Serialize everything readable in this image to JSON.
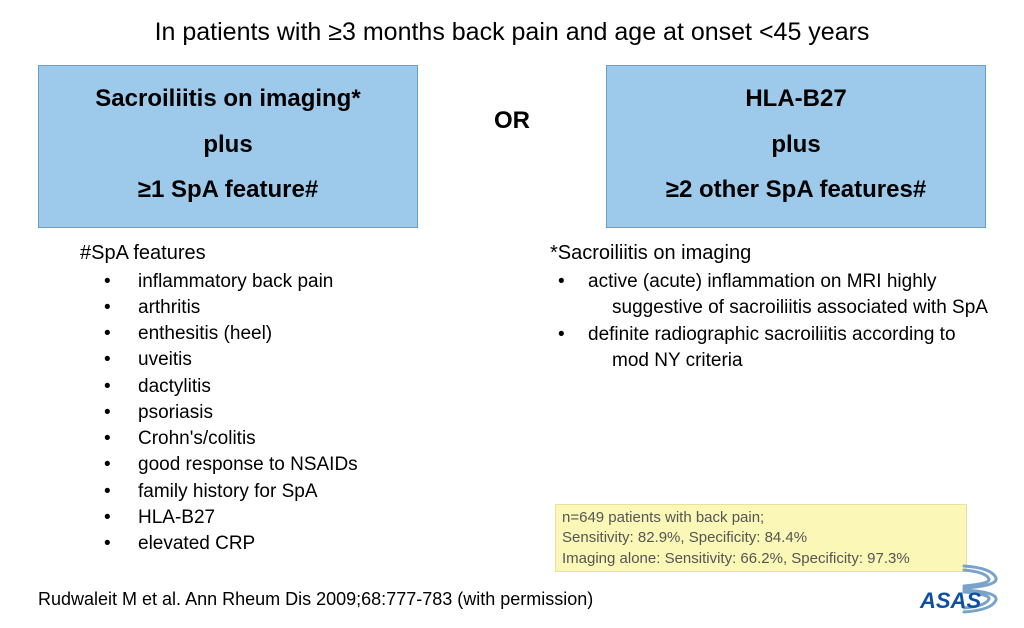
{
  "title": "In patients with ≥3 months back pain and age at onset <45 years",
  "left_arm": {
    "l1": "Sacroiliitis on imaging*",
    "l2": "plus",
    "l3": "≥1 SpA feature#"
  },
  "or_label": "OR",
  "right_arm": {
    "l1": "HLA-B27",
    "l2": "plus",
    "l3": "≥2 other SpA features#"
  },
  "spa_title": "#SpA features",
  "spa_features": [
    "inflammatory back pain",
    "arthritis",
    "enthesitis (heel)",
    "uveitis",
    "dactylitis",
    "psoriasis",
    "Crohn's/colitis",
    "good response to NSAIDs",
    "family history for SpA",
    "HLA-B27",
    "elevated CRP"
  ],
  "sacro_title": "*Sacroiliitis on imaging",
  "sacro_items": [
    "active (acute) inflammation on MRI highly suggestive of sacroiliitis associated with SpA",
    "definite radiographic sacroiliitis according to mod NY criteria"
  ],
  "stats": {
    "l1": "n=649 patients with back pain;",
    "l2": "Sensitivity: 82.9%, Specificity: 84.4%",
    "l3": "Imaging alone: Sensitivity: 66.2%, Specificity: 97.3%"
  },
  "citation": "Rudwaleit M et al. Ann Rheum Dis 2009;68:777-783 (with permission)",
  "logo_text": "ASAS",
  "colors": {
    "arm_bg": "#9dc9ea",
    "highlight_bg": "#fbf7b6",
    "logo_stroke": "#7aa3c9",
    "logo_text": "#0d4fa1"
  }
}
